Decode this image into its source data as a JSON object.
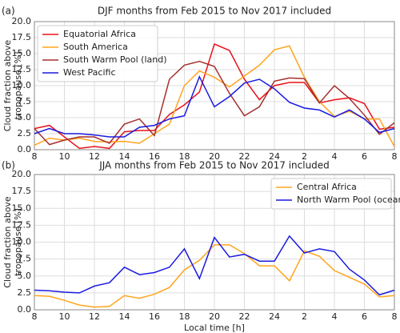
{
  "chart_data": [
    {
      "type": "line",
      "label": "(a)",
      "title": "DJF months from Feb  2015 to Nov  2017 included",
      "ylabel": [
        "Cloud fraction above",
        "tropopause [%]"
      ],
      "x": [
        8,
        9,
        10,
        11,
        12,
        13,
        14,
        15,
        16,
        17,
        18,
        19,
        20,
        21,
        22,
        23,
        24,
        25,
        26,
        27,
        28,
        29,
        30,
        31,
        32
      ],
      "xlim": [
        8,
        32
      ],
      "xticks": [
        8,
        10,
        12,
        14,
        16,
        18,
        20,
        22,
        24,
        {
          "value": 26,
          "label": "2"
        },
        {
          "value": 28,
          "label": "4"
        },
        {
          "value": 30,
          "label": "6"
        },
        {
          "value": 32,
          "label": "8"
        }
      ],
      "ylim": [
        0,
        20
      ],
      "yticks": [
        {
          "value": 0,
          "label": "0.0"
        },
        {
          "value": 2.5,
          "label": "2.5"
        },
        {
          "value": 5,
          "label": "5.0"
        },
        {
          "value": 7.5,
          "label": "7.5"
        },
        {
          "value": 10,
          "label": "10.0"
        },
        {
          "value": 12.5,
          "label": "12.5"
        },
        {
          "value": 15,
          "label": "15.0"
        },
        {
          "value": 17.5,
          "label": "17.5"
        },
        {
          "value": 20,
          "label": "20.0"
        }
      ],
      "grid": true,
      "legend": "upper-left",
      "series": [
        {
          "name": "Equatorial Africa",
          "color": "#e8141c",
          "values": [
            3.3,
            3.8,
            2,
            0.2,
            0.5,
            0.2,
            2.8,
            3,
            3,
            5.5,
            7,
            9,
            16.5,
            15.5,
            11,
            7.8,
            10,
            10.5,
            10.5,
            7.3,
            7.8,
            8.1,
            7.2,
            3.2,
            3.5
          ]
        },
        {
          "name": "South America",
          "color": "#ffa51c",
          "values": [
            0.7,
            1.8,
            1.5,
            1.8,
            1.3,
            1.2,
            1.3,
            1,
            2.5,
            4,
            10,
            12.3,
            11.3,
            9.8,
            11.5,
            13.2,
            15.6,
            16.2,
            11.3,
            7.5,
            5.2,
            6,
            4.8,
            4.8,
            0.5
          ]
        },
        {
          "name": "South Warm Pool (land)",
          "color": "#a5302e",
          "values": [
            3.3,
            0.8,
            1.5,
            2,
            2,
            1,
            4,
            4.8,
            2.2,
            11,
            13.2,
            13.8,
            13,
            8.8,
            5.3,
            6.7,
            10.7,
            11.2,
            11.1,
            7.3,
            10,
            8,
            5.4,
            2.4,
            4.2
          ]
        },
        {
          "name": "West Pacific",
          "color": "#1a1ae0",
          "values": [
            2.5,
            3.3,
            2.5,
            2.5,
            2.3,
            2,
            2,
            3.5,
            3.8,
            4.8,
            5.3,
            11.4,
            6.7,
            8.3,
            10.4,
            11,
            9.5,
            7.4,
            6.5,
            6.2,
            5.1,
            6.2,
            4.8,
            2.7,
            3.3
          ]
        }
      ]
    },
    {
      "type": "line",
      "label": "(b)",
      "title": "JJA months from Feb  2015 to Nov  2017 included",
      "ylabel": [
        "Cloud fraction above",
        "tropopause [%]"
      ],
      "xlabel": "Local time [h]",
      "x": [
        8,
        9,
        10,
        11,
        12,
        13,
        14,
        15,
        16,
        17,
        18,
        19,
        20,
        21,
        22,
        23,
        24,
        25,
        26,
        27,
        28,
        29,
        30,
        31,
        32
      ],
      "xlim": [
        8,
        32
      ],
      "xticks": [
        8,
        10,
        12,
        14,
        16,
        18,
        20,
        22,
        24,
        {
          "value": 26,
          "label": "2"
        },
        {
          "value": 28,
          "label": "4"
        },
        {
          "value": 30,
          "label": "6"
        },
        {
          "value": 32,
          "label": "8"
        }
      ],
      "ylim": [
        0,
        20
      ],
      "yticks": [
        {
          "value": 0,
          "label": "0.0"
        },
        {
          "value": 2.5,
          "label": "2.5"
        },
        {
          "value": 5,
          "label": "5.0"
        },
        {
          "value": 7.5,
          "label": "7.5"
        },
        {
          "value": 10,
          "label": "10.0"
        },
        {
          "value": 12.5,
          "label": "12.5"
        },
        {
          "value": 15,
          "label": "15.0"
        },
        {
          "value": 17.5,
          "label": "17.5"
        },
        {
          "value": 20,
          "label": "20.0"
        }
      ],
      "grid": true,
      "legend": "upper-right",
      "series": [
        {
          "name": "Central Africa",
          "color": "#ffa51c",
          "values": [
            2.1,
            2,
            1.4,
            0.7,
            0.4,
            0.5,
            2.1,
            1.7,
            2.3,
            3.3,
            5.9,
            7.3,
            9.6,
            9.6,
            8.3,
            6.5,
            6.5,
            4.3,
            8.7,
            7.9,
            5.8,
            4.8,
            3.8,
            1.9,
            2.1
          ]
        },
        {
          "name": "North Warm Pool (ocean)",
          "color": "#1a1ae0",
          "values": [
            2.9,
            2.8,
            2.6,
            2.5,
            3.5,
            4,
            6.3,
            5.2,
            5.5,
            6.3,
            9,
            4.6,
            10.7,
            7.8,
            8.2,
            7.2,
            7.2,
            10.9,
            8.4,
            9,
            8.6,
            6,
            4.4,
            2.2,
            2.9
          ]
        }
      ]
    }
  ]
}
